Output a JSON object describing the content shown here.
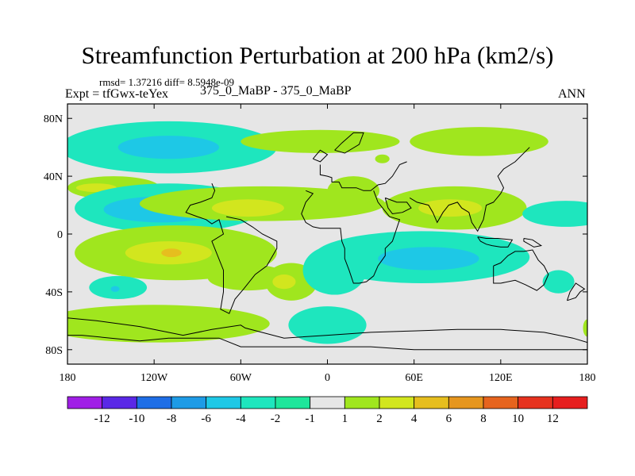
{
  "chart_data": {
    "type": "heatmap",
    "title": "Streamfunction Perturbation at 200 hPa (km2/s)",
    "stats_text": "rmsd= 1.37216 diff= 8.5948e-09",
    "left_subtitle": "Expt = tfGwx-teYex",
    "center_subtitle": "375_0_MaBP - 375_0_MaBP",
    "right_subtitle": "ANN",
    "x_axis": {
      "range": [
        -180,
        180
      ],
      "ticks": [
        -180,
        -120,
        -60,
        0,
        60,
        120,
        180
      ],
      "tick_labels": [
        "180",
        "120W",
        "60W",
        "0",
        "60E",
        "120E",
        "180"
      ]
    },
    "y_axis": {
      "range": [
        -90,
        90
      ],
      "ticks": [
        80,
        40,
        0,
        -40,
        -80
      ],
      "tick_labels": [
        "80N",
        "40N",
        "0",
        "40S",
        "80S"
      ]
    },
    "colorbar": {
      "labels": [
        "-12",
        "-10",
        "-8",
        "-6",
        "-4",
        "-2",
        "-1",
        "1",
        "2",
        "4",
        "6",
        "8",
        "10",
        "12"
      ],
      "colors": [
        "#a01ee6",
        "#5a28e6",
        "#1e6ee6",
        "#1e9be6",
        "#1ec8e6",
        "#1ee6be",
        "#1ee69b",
        "#e6e6e6",
        "#a0e61e",
        "#d2e61e",
        "#e6be1e",
        "#e6961e",
        "#e6641e",
        "#e6321e",
        "#e61e1e"
      ]
    },
    "background_color": "#e6e6e6",
    "features": [
      {
        "type": "ellipse",
        "color": "#1ee6be",
        "lon": -110,
        "lat": 60,
        "rlon": 75,
        "rlat": 18
      },
      {
        "type": "ellipse",
        "color": "#1ec8e6",
        "lon": -110,
        "lat": 60,
        "rlon": 35,
        "rlat": 8
      },
      {
        "type": "ellipse",
        "color": "#a0e61e",
        "lon": -5,
        "lat": 64,
        "rlon": 55,
        "rlat": 8
      },
      {
        "type": "ellipse",
        "color": "#a0e61e",
        "lon": 105,
        "lat": 64,
        "rlon": 48,
        "rlat": 10
      },
      {
        "type": "ellipse",
        "color": "#a0e61e",
        "lon": 38,
        "lat": 52,
        "rlon": 5,
        "rlat": 3
      },
      {
        "type": "ellipse",
        "color": "#a0e61e",
        "lon": -148,
        "lat": 32,
        "rlon": 32,
        "rlat": 8
      },
      {
        "type": "ellipse",
        "color": "#d2e61e",
        "lon": -160,
        "lat": 32,
        "rlon": 14,
        "rlat": 3
      },
      {
        "type": "ellipse",
        "color": "#1ee6be",
        "lon": -110,
        "lat": 18,
        "rlon": 65,
        "rlat": 17
      },
      {
        "type": "ellipse",
        "color": "#1ec8e6",
        "lon": -115,
        "lat": 17,
        "rlon": 40,
        "rlat": 9
      },
      {
        "type": "ellipse",
        "color": "#a0e61e",
        "lon": -45,
        "lat": 21,
        "rlon": 85,
        "rlat": 12
      },
      {
        "type": "ellipse",
        "color": "#d2e61e",
        "lon": -55,
        "lat": 18,
        "rlon": 25,
        "rlat": 6
      },
      {
        "type": "ellipse",
        "color": "#a0e61e",
        "lon": 18,
        "lat": 30,
        "rlon": 18,
        "rlat": 10
      },
      {
        "type": "ellipse",
        "color": "#a0e61e",
        "lon": 88,
        "lat": 18,
        "rlon": 50,
        "rlat": 15
      },
      {
        "type": "ellipse",
        "color": "#d2e61e",
        "lon": 85,
        "lat": 18,
        "rlon": 22,
        "rlat": 6
      },
      {
        "type": "ellipse",
        "color": "#1ee6be",
        "lon": 165,
        "lat": 14,
        "rlon": 30,
        "rlat": 9
      },
      {
        "type": "ellipse",
        "color": "#a0e61e",
        "lon": -105,
        "lat": -13,
        "rlon": 70,
        "rlat": 19
      },
      {
        "type": "ellipse",
        "color": "#d2e61e",
        "lon": -110,
        "lat": -13,
        "rlon": 30,
        "rlat": 8
      },
      {
        "type": "ellipse",
        "color": "#e6be1e",
        "lon": -108,
        "lat": -13,
        "rlon": 7,
        "rlat": 3
      },
      {
        "type": "ellipse",
        "color": "#a0e61e",
        "lon": -55,
        "lat": -30,
        "rlon": 28,
        "rlat": 9
      },
      {
        "type": "ellipse",
        "color": "#a0e61e",
        "lon": -25,
        "lat": -33,
        "rlon": 18,
        "rlat": 13
      },
      {
        "type": "ellipse",
        "color": "#d2e61e",
        "lon": -30,
        "lat": -33,
        "rlon": 8,
        "rlat": 5
      },
      {
        "type": "ellipse",
        "color": "#1ee6be",
        "lon": 65,
        "lat": -16,
        "rlon": 75,
        "rlat": 18
      },
      {
        "type": "ellipse",
        "color": "#1ec8e6",
        "lon": 70,
        "lat": -17,
        "rlon": 35,
        "rlat": 8
      },
      {
        "type": "ellipse",
        "color": "#1ee6be",
        "lon": 5,
        "lat": -25,
        "rlon": 22,
        "rlat": 17
      },
      {
        "type": "ellipse",
        "color": "#1ee6be",
        "lon": 160,
        "lat": -33,
        "rlon": 11,
        "rlat": 8
      },
      {
        "type": "ellipse",
        "color": "#1ee6be",
        "lon": -145,
        "lat": -37,
        "rlon": 20,
        "rlat": 8
      },
      {
        "type": "ellipse",
        "color": "#1ec8e6",
        "lon": -147,
        "lat": -38,
        "rlon": 3,
        "rlat": 2
      },
      {
        "type": "ellipse",
        "color": "#a0e61e",
        "lon": -120,
        "lat": -62,
        "rlon": 80,
        "rlat": 13
      },
      {
        "type": "ellipse",
        "color": "#1ee6be",
        "lon": 0,
        "lat": -63,
        "rlon": 27,
        "rlat": 13
      },
      {
        "type": "ellipse",
        "color": "#a0e61e",
        "lon": 180,
        "lat": -65,
        "rlon": 3,
        "rlat": 6
      }
    ],
    "coastlines": [
      [
        [
          -5,
          48
        ],
        [
          -5,
          41
        ],
        [
          0,
          40
        ],
        [
          3,
          39
        ],
        [
          3,
          36
        ],
        [
          8,
          36
        ],
        [
          10,
          32
        ],
        [
          20,
          32
        ],
        [
          25,
          30
        ],
        [
          30,
          30
        ],
        [
          35,
          34
        ],
        [
          40,
          35
        ],
        [
          45,
          40
        ],
        [
          50,
          48
        ],
        [
          55,
          50
        ]
      ],
      [
        [
          -15,
          30
        ],
        [
          -10,
          28
        ],
        [
          -15,
          22
        ],
        [
          -18,
          14
        ],
        [
          -15,
          8
        ],
        [
          -10,
          5
        ],
        [
          -5,
          4
        ],
        [
          5,
          4
        ],
        [
          9,
          4
        ],
        [
          10,
          -5
        ],
        [
          12,
          -10
        ],
        [
          12,
          -17
        ],
        [
          15,
          -25
        ],
        [
          18,
          -34
        ],
        [
          22,
          -34
        ],
        [
          27,
          -33
        ],
        [
          32,
          -29
        ],
        [
          35,
          -22
        ],
        [
          40,
          -15
        ],
        [
          40,
          -10
        ],
        [
          45,
          -5
        ],
        [
          50,
          10
        ],
        [
          43,
          12
        ],
        [
          35,
          22
        ],
        [
          32,
          30
        ]
      ],
      [
        [
          40,
          25
        ],
        [
          48,
          22
        ],
        [
          55,
          22
        ],
        [
          58,
          18
        ],
        [
          52,
          15
        ],
        [
          45,
          14
        ],
        [
          42,
          18
        ],
        [
          40,
          25
        ]
      ],
      [
        [
          57,
          25
        ],
        [
          62,
          22
        ],
        [
          70,
          20
        ],
        [
          73,
          15
        ],
        [
          76,
          8
        ],
        [
          80,
          15
        ],
        [
          84,
          20
        ],
        [
          90,
          22
        ],
        [
          93,
          18
        ],
        [
          98,
          15
        ],
        [
          100,
          8
        ],
        [
          104,
          2
        ],
        [
          108,
          10
        ],
        [
          110,
          20
        ],
        [
          115,
          22
        ],
        [
          120,
          28
        ],
        [
          122,
          32
        ],
        [
          118,
          40
        ],
        [
          122,
          45
        ],
        [
          130,
          50
        ],
        [
          140,
          60
        ]
      ],
      [
        [
          -80,
          35
        ],
        [
          -78,
          30
        ],
        [
          -80,
          25
        ],
        [
          -88,
          22
        ],
        [
          -95,
          20
        ],
        [
          -98,
          15
        ],
        [
          -90,
          12
        ],
        [
          -84,
          10
        ],
        [
          -80,
          7
        ],
        [
          -75,
          10
        ],
        [
          -72,
          0
        ],
        [
          -80,
          -5
        ],
        [
          -76,
          -15
        ],
        [
          -72,
          -25
        ],
        [
          -72,
          -40
        ],
        [
          -74,
          -52
        ],
        [
          -68,
          -55
        ],
        [
          -64,
          -45
        ],
        [
          -58,
          -38
        ],
        [
          -50,
          -28
        ],
        [
          -42,
          -22
        ],
        [
          -35,
          -10
        ],
        [
          -35,
          -5
        ],
        [
          -45,
          0
        ],
        [
          -52,
          5
        ],
        [
          -60,
          10
        ],
        [
          -70,
          12
        ]
      ],
      [
        [
          115,
          -22
        ],
        [
          115,
          -34
        ],
        [
          120,
          -34
        ],
        [
          130,
          -32
        ],
        [
          137,
          -35
        ],
        [
          145,
          -39
        ],
        [
          150,
          -35
        ],
        [
          153,
          -28
        ],
        [
          150,
          -22
        ],
        [
          146,
          -18
        ],
        [
          142,
          -11
        ],
        [
          136,
          -12
        ],
        [
          130,
          -12
        ],
        [
          125,
          -15
        ],
        [
          120,
          -20
        ],
        [
          115,
          -22
        ]
      ],
      [
        [
          166,
          -46
        ],
        [
          172,
          -44
        ],
        [
          175,
          -40
        ],
        [
          178,
          -38
        ],
        [
          172,
          -34
        ],
        [
          168,
          -40
        ],
        [
          166,
          -46
        ]
      ],
      [
        [
          -180,
          -58
        ],
        [
          -160,
          -60
        ],
        [
          -130,
          -64
        ],
        [
          -100,
          -70
        ],
        [
          -80,
          -66
        ],
        [
          -60,
          -63
        ],
        [
          -57,
          -65
        ],
        [
          -30,
          -72
        ],
        [
          0,
          -70
        ],
        [
          30,
          -68
        ],
        [
          60,
          -67
        ],
        [
          90,
          -66
        ],
        [
          120,
          -66
        ],
        [
          150,
          -68
        ],
        [
          170,
          -72
        ],
        [
          180,
          -75
        ]
      ],
      [
        [
          -180,
          -70
        ],
        [
          -170,
          -70
        ],
        [
          -150,
          -72
        ],
        [
          -130,
          -74
        ],
        [
          -110,
          -72
        ],
        [
          -90,
          -72
        ],
        [
          -75,
          -72
        ],
        [
          -60,
          -78
        ],
        [
          -30,
          -78
        ],
        [
          0,
          -78
        ],
        [
          30,
          -78
        ],
        [
          60,
          -80
        ],
        [
          90,
          -80
        ],
        [
          120,
          -80
        ],
        [
          150,
          -80
        ],
        [
          180,
          -80
        ]
      ],
      [
        [
          104,
          -2
        ],
        [
          106,
          -5
        ],
        [
          110,
          -7
        ],
        [
          114,
          -8
        ],
        [
          120,
          -9
        ],
        [
          125,
          -9
        ],
        [
          128,
          -4
        ],
        [
          118,
          -3
        ],
        [
          110,
          -3
        ],
        [
          104,
          -2
        ]
      ],
      [
        [
          136,
          -3
        ],
        [
          142,
          -4
        ],
        [
          148,
          -8
        ],
        [
          143,
          -9
        ],
        [
          136,
          -5
        ],
        [
          136,
          -3
        ]
      ],
      [
        [
          -10,
          52
        ],
        [
          -5,
          58
        ],
        [
          0,
          55
        ],
        [
          -5,
          50
        ],
        [
          -10,
          52
        ]
      ],
      [
        [
          5,
          58
        ],
        [
          10,
          63
        ],
        [
          18,
          70
        ],
        [
          25,
          70
        ],
        [
          22,
          62
        ],
        [
          12,
          56
        ],
        [
          5,
          58
        ]
      ]
    ]
  }
}
